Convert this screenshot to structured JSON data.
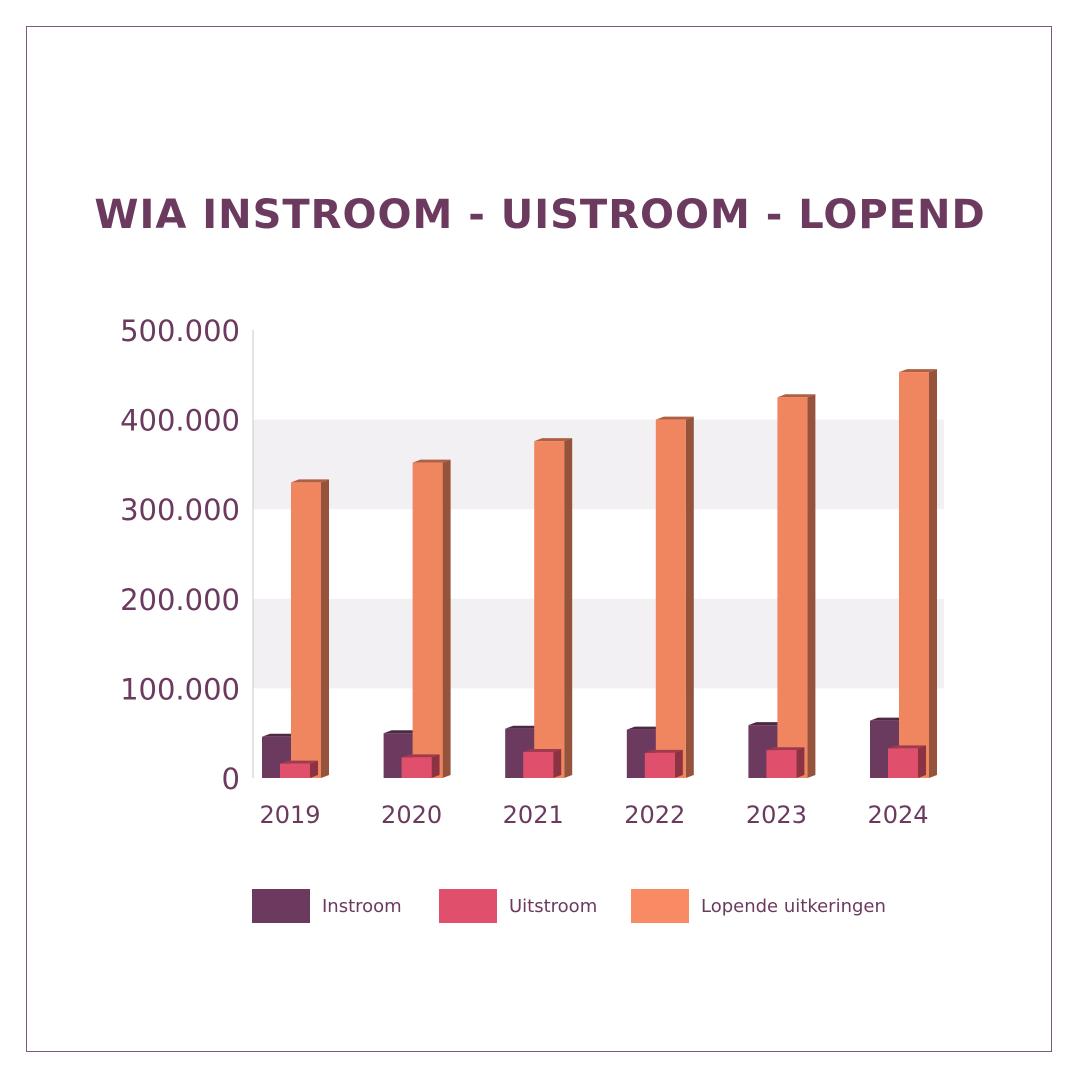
{
  "chart_data": {
    "type": "bar",
    "title": "WIA INSTROOM - UISTROOM - LOPEND",
    "categories": [
      "2019",
      "2020",
      "2021",
      "2022",
      "2023",
      "2024"
    ],
    "series": [
      {
        "name": "Instroom",
        "color": "#6b3a5e",
        "values": [
          46000,
          50000,
          55000,
          54000,
          59000,
          64000
        ]
      },
      {
        "name": "Uitstroom",
        "color": "#e0506c",
        "values": [
          16000,
          23000,
          29000,
          28000,
          31000,
          33000
        ]
      },
      {
        "name": "Lopende uitkeringen",
        "color": "#f0865f",
        "values": [
          330000,
          352000,
          376000,
          400000,
          425000,
          453000
        ]
      }
    ],
    "y_ticks": [
      "0",
      "100.000",
      "200.000",
      "300.000",
      "400.000",
      "500.000"
    ],
    "ylim": [
      0,
      500000
    ],
    "grid": "alternating bands",
    "legend": "bottom"
  }
}
